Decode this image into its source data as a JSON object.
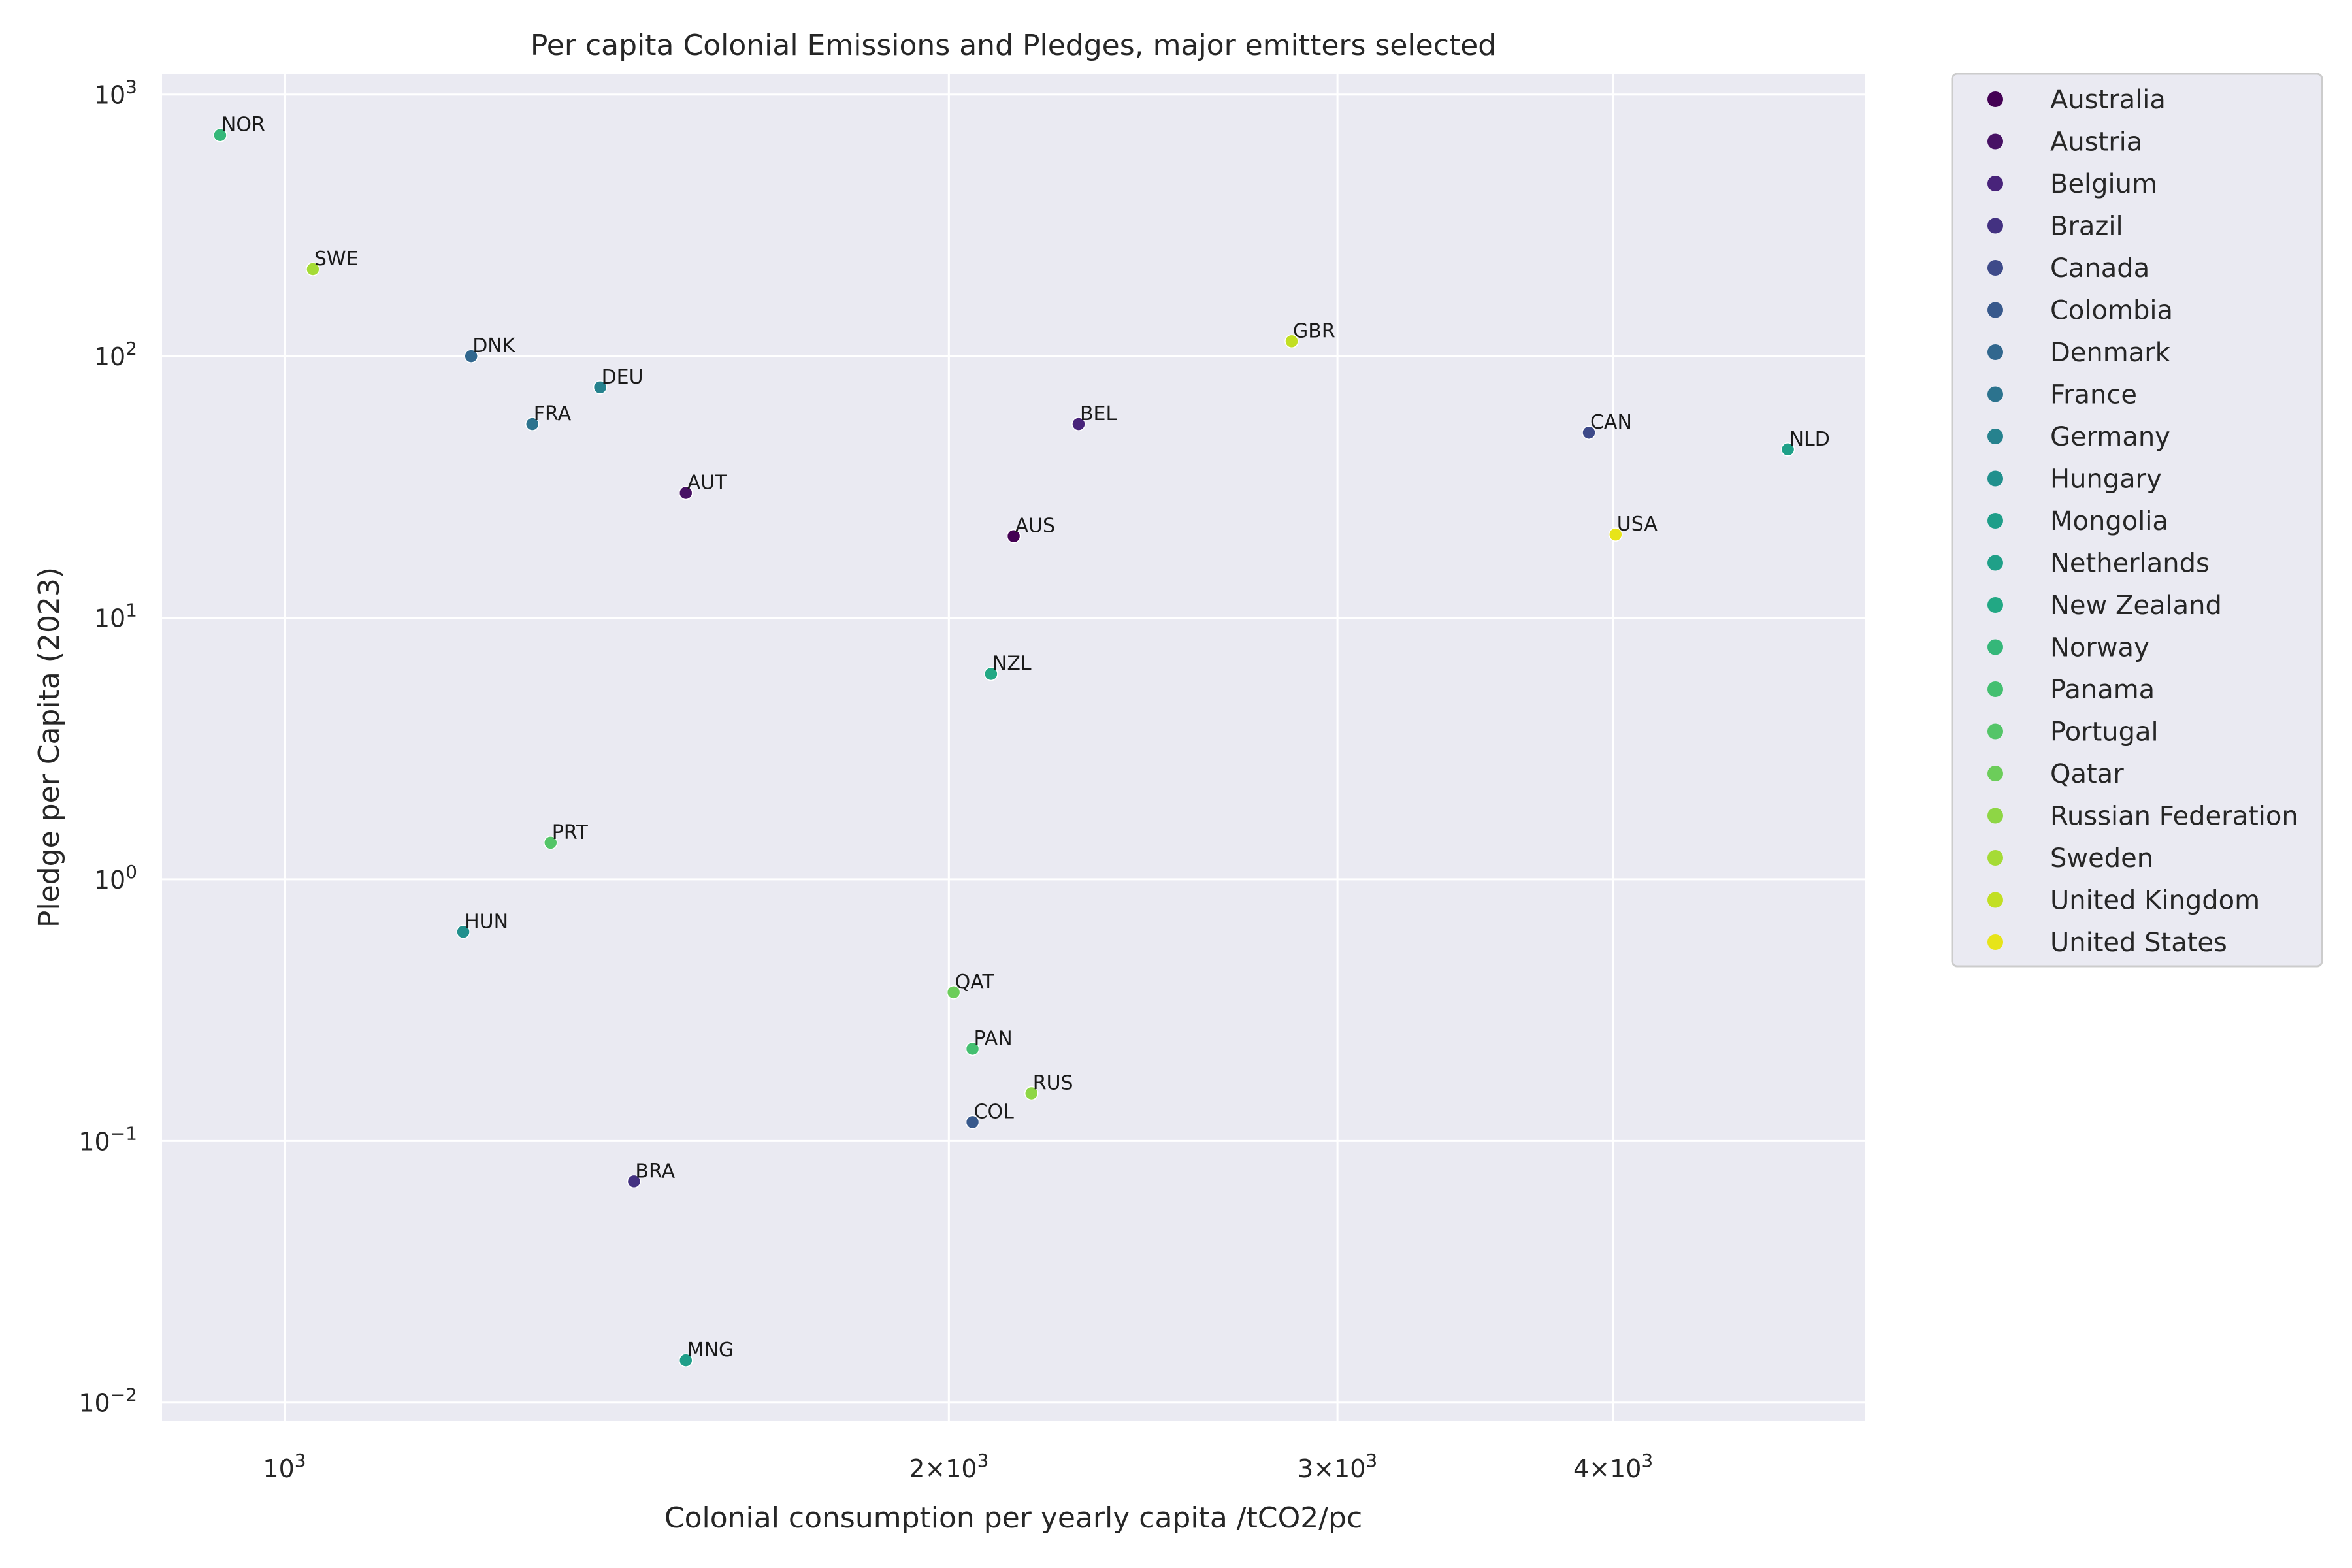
{
  "chart_data": {
    "type": "scatter",
    "title": "Per capita Colonial Emissions and Pledges, major emitters selected",
    "xlabel": "Colonial consumption per yearly capita /tCO2/pc",
    "ylabel": "Pledge per Capita (2023)",
    "xscale": "log",
    "yscale": "log",
    "xlim": [
      880,
      5200
    ],
    "ylim": [
      0.0085,
      1200
    ],
    "grid": true,
    "legend_position": "outside-right",
    "x_ticks": [
      {
        "value": 1000,
        "label": "10^3"
      },
      {
        "value": 2000,
        "label": "2×10^3"
      },
      {
        "value": 3000,
        "label": "3×10^3"
      },
      {
        "value": 4000,
        "label": "4×10^3"
      }
    ],
    "y_ticks": [
      {
        "value": 0.01,
        "label": "10^−2"
      },
      {
        "value": 0.1,
        "label": "10^−1"
      },
      {
        "value": 1,
        "label": "10^0"
      },
      {
        "value": 10,
        "label": "10^1"
      },
      {
        "value": 100,
        "label": "10^2"
      },
      {
        "value": 1000,
        "label": "10^3"
      }
    ],
    "points": [
      {
        "name": "Australia",
        "label": "AUS",
        "x": 2140,
        "y": 20.5,
        "color": "#440154"
      },
      {
        "name": "Austria",
        "label": "AUT",
        "x": 1520,
        "y": 30,
        "color": "#471164"
      },
      {
        "name": "Belgium",
        "label": "BEL",
        "x": 2290,
        "y": 55,
        "color": "#48237a"
      },
      {
        "name": "Brazil",
        "label": "BRA",
        "x": 1440,
        "y": 0.07,
        "color": "#433181"
      },
      {
        "name": "Canada",
        "label": "CAN",
        "x": 3900,
        "y": 51,
        "color": "#3e4a89"
      },
      {
        "name": "Colombia",
        "label": "COL",
        "x": 2050,
        "y": 0.118,
        "color": "#38598c"
      },
      {
        "name": "Denmark",
        "label": "DNK",
        "x": 1215,
        "y": 100,
        "color": "#31678e"
      },
      {
        "name": "France",
        "label": "FRA",
        "x": 1295,
        "y": 55,
        "color": "#2c738e"
      },
      {
        "name": "Germany",
        "label": "DEU",
        "x": 1390,
        "y": 76,
        "color": "#26828e"
      },
      {
        "name": "Hungary",
        "label": "HUN",
        "x": 1205,
        "y": 0.63,
        "color": "#21908d"
      },
      {
        "name": "Mongolia",
        "label": "MNG",
        "x": 1520,
        "y": 0.0145,
        "color": "#1f9e89"
      },
      {
        "name": "Netherlands",
        "label": "NLD",
        "x": 4800,
        "y": 44,
        "color": "#1fa088"
      },
      {
        "name": "New Zealand",
        "label": "NZL",
        "x": 2090,
        "y": 6.1,
        "color": "#22a884"
      },
      {
        "name": "Norway",
        "label": "NOR",
        "x": 935,
        "y": 700,
        "color": "#35b779"
      },
      {
        "name": "Panama",
        "label": "PAN",
        "x": 2050,
        "y": 0.225,
        "color": "#44bf70"
      },
      {
        "name": "Portugal",
        "label": "PRT",
        "x": 1320,
        "y": 1.38,
        "color": "#54c568"
      },
      {
        "name": "Qatar",
        "label": "QAT",
        "x": 2010,
        "y": 0.37,
        "color": "#6ccd5a"
      },
      {
        "name": "Russian Federation",
        "label": "RUS",
        "x": 2180,
        "y": 0.152,
        "color": "#8ed645"
      },
      {
        "name": "Sweden",
        "label": "SWE",
        "x": 1030,
        "y": 215,
        "color": "#a5db36"
      },
      {
        "name": "United Kingdom",
        "label": "GBR",
        "x": 2860,
        "y": 114,
        "color": "#c2df23"
      },
      {
        "name": "United States",
        "label": "USA",
        "x": 4010,
        "y": 20.8,
        "color": "#e7e419"
      }
    ]
  }
}
